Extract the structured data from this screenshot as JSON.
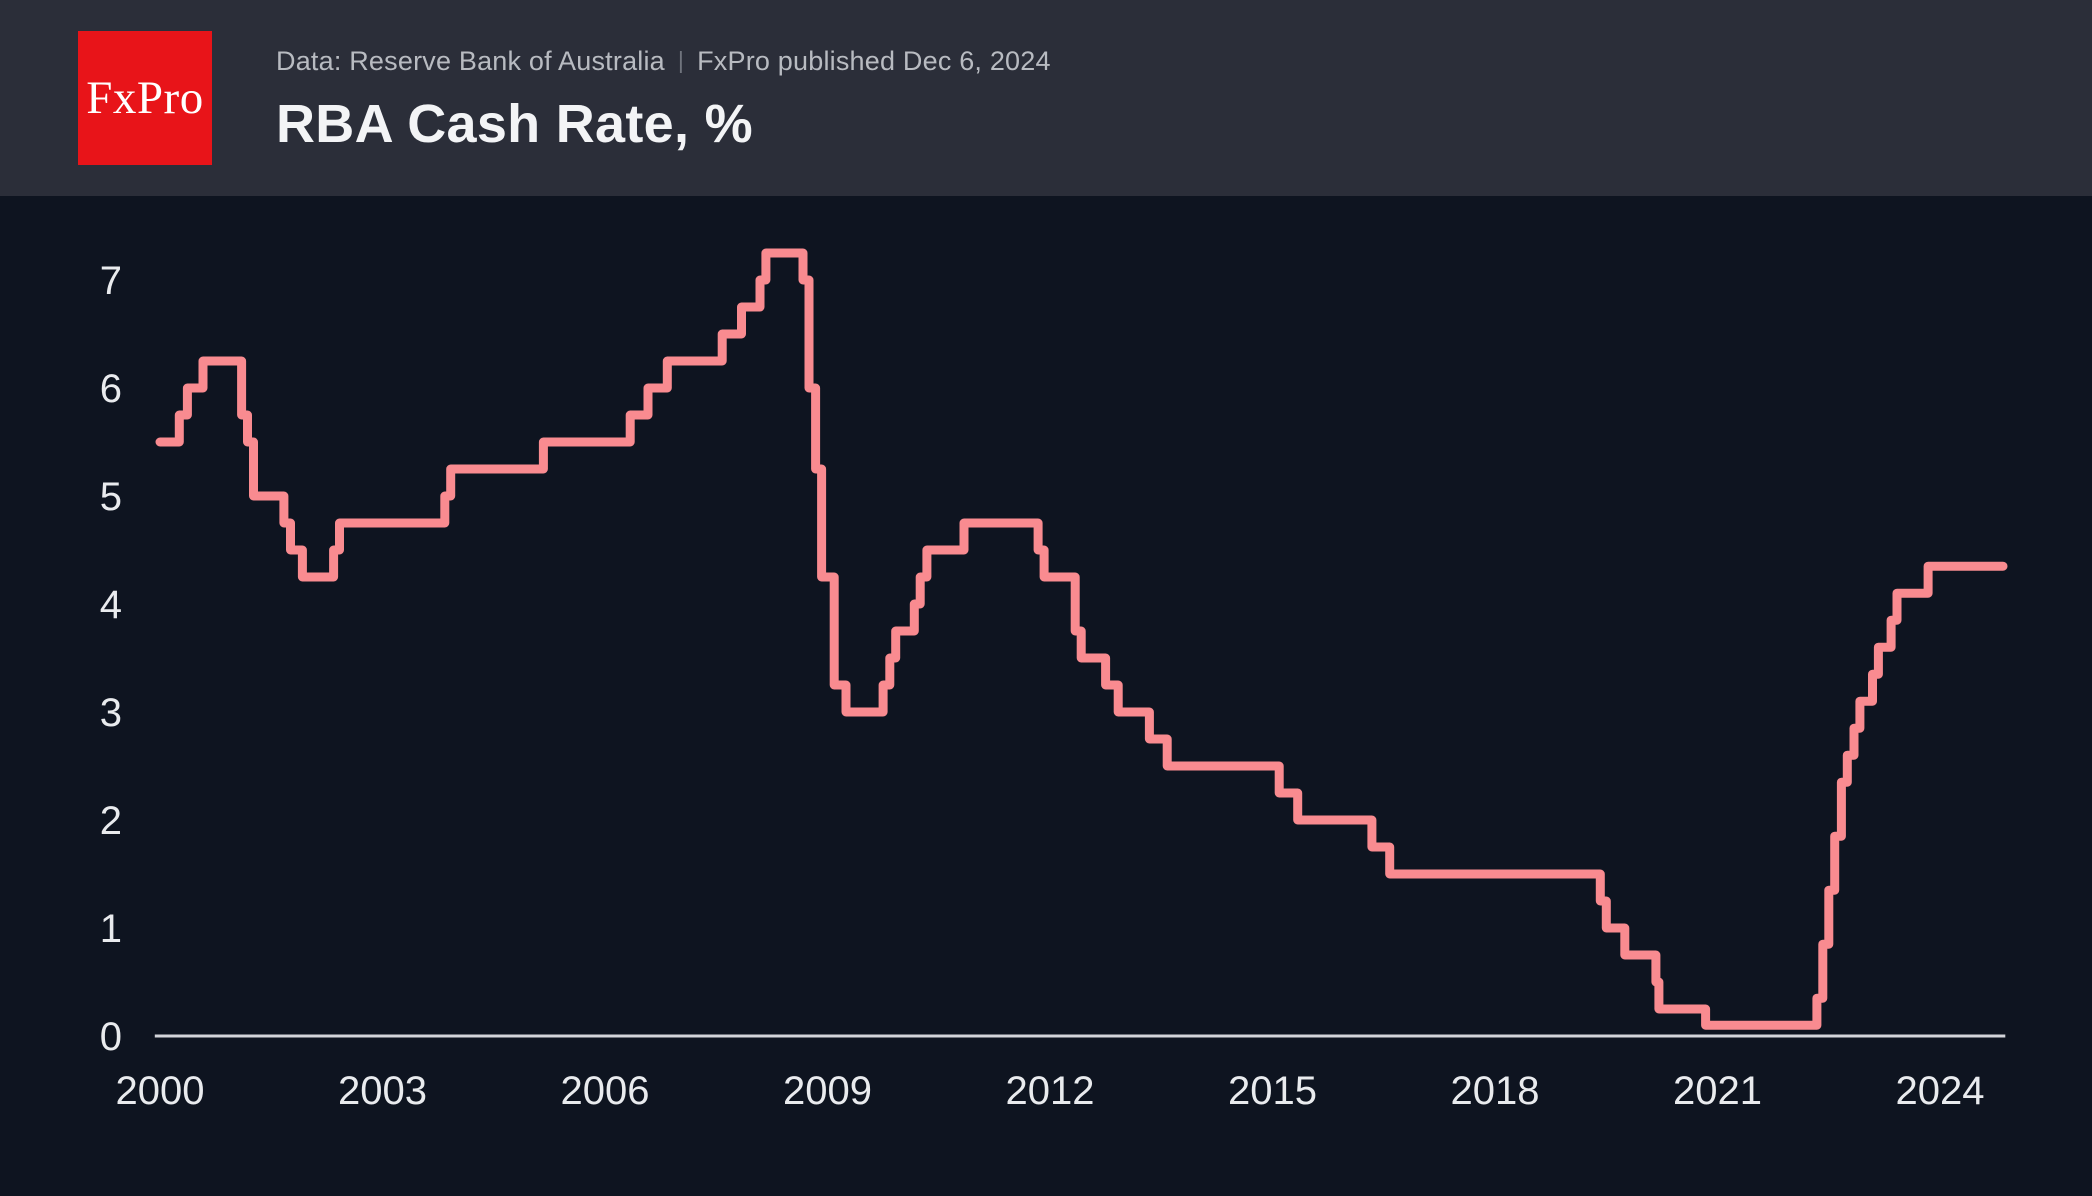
{
  "header": {
    "logo_text": "FxPro",
    "source": "Data: Reserve Bank of Australia",
    "separator": "|",
    "published": "FxPro published Dec 6, 2024",
    "title": "RBA Cash Rate, %"
  },
  "colors": {
    "header_bg": "#2b2e39",
    "chart_bg": "#0e1420",
    "line": "#f98b90",
    "axis": "#d3d5da",
    "tick": "#e9ebee",
    "logo_bg": "#e81419",
    "logo_fg": "#ffffff",
    "subtitle": "#b8bbc1",
    "sep": "#70747d",
    "title": "#f3f4f6"
  },
  "chart_data": {
    "type": "line",
    "line_style": "step-after",
    "title": "RBA Cash Rate, %",
    "xlabel": "",
    "ylabel": "%",
    "grid": false,
    "legend": "none",
    "x_range": [
      1999.93,
      2024.88
    ],
    "y_range": [
      0,
      7.7
    ],
    "x_ticks": [
      2000,
      2003,
      2006,
      2009,
      2012,
      2015,
      2018,
      2021,
      2024
    ],
    "y_ticks": [
      0,
      1,
      2,
      3,
      4,
      5,
      6,
      7
    ],
    "series": [
      {
        "name": "RBA Cash Rate (%)",
        "points": [
          [
            2000.0,
            5.5
          ],
          [
            2000.26,
            5.75
          ],
          [
            2000.37,
            6.0
          ],
          [
            2000.58,
            6.25
          ],
          [
            2001.1,
            5.75
          ],
          [
            2001.18,
            5.5
          ],
          [
            2001.26,
            5.0
          ],
          [
            2001.67,
            4.75
          ],
          [
            2001.76,
            4.5
          ],
          [
            2001.92,
            4.25
          ],
          [
            2002.34,
            4.5
          ],
          [
            2002.42,
            4.75
          ],
          [
            2003.84,
            5.0
          ],
          [
            2003.92,
            5.25
          ],
          [
            2005.17,
            5.5
          ],
          [
            2006.34,
            5.75
          ],
          [
            2006.58,
            6.0
          ],
          [
            2006.84,
            6.25
          ],
          [
            2007.58,
            6.5
          ],
          [
            2007.84,
            6.75
          ],
          [
            2008.09,
            7.0
          ],
          [
            2008.17,
            7.25
          ],
          [
            2008.67,
            7.0
          ],
          [
            2008.75,
            6.0
          ],
          [
            2008.84,
            5.25
          ],
          [
            2008.92,
            4.25
          ],
          [
            2009.09,
            3.25
          ],
          [
            2009.25,
            3.0
          ],
          [
            2009.75,
            3.25
          ],
          [
            2009.84,
            3.5
          ],
          [
            2009.92,
            3.75
          ],
          [
            2010.17,
            4.0
          ],
          [
            2010.25,
            4.25
          ],
          [
            2010.34,
            4.5
          ],
          [
            2010.84,
            4.75
          ],
          [
            2011.84,
            4.5
          ],
          [
            2011.92,
            4.25
          ],
          [
            2012.34,
            3.75
          ],
          [
            2012.42,
            3.5
          ],
          [
            2012.75,
            3.25
          ],
          [
            2012.92,
            3.0
          ],
          [
            2013.34,
            2.75
          ],
          [
            2013.58,
            2.5
          ],
          [
            2015.09,
            2.25
          ],
          [
            2015.34,
            2.0
          ],
          [
            2016.34,
            1.75
          ],
          [
            2016.58,
            1.5
          ],
          [
            2019.42,
            1.25
          ],
          [
            2019.5,
            1.0
          ],
          [
            2019.75,
            0.75
          ],
          [
            2020.17,
            0.5
          ],
          [
            2020.21,
            0.25
          ],
          [
            2020.84,
            0.1
          ],
          [
            2022.34,
            0.35
          ],
          [
            2022.42,
            0.85
          ],
          [
            2022.5,
            1.35
          ],
          [
            2022.58,
            1.85
          ],
          [
            2022.67,
            2.35
          ],
          [
            2022.75,
            2.6
          ],
          [
            2022.84,
            2.85
          ],
          [
            2022.92,
            3.1
          ],
          [
            2023.09,
            3.35
          ],
          [
            2023.17,
            3.6
          ],
          [
            2023.34,
            3.85
          ],
          [
            2023.42,
            4.1
          ],
          [
            2023.84,
            4.35
          ],
          [
            2024.85,
            4.35
          ]
        ]
      }
    ]
  }
}
